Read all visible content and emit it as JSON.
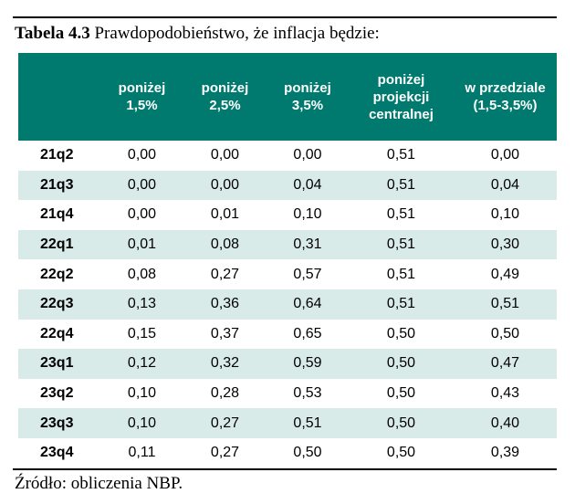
{
  "caption": {
    "label": "Tabela 4.3",
    "text": " Prawdopodobieństwo, że inflacja będzie:"
  },
  "table": {
    "header_color": "#007a6e",
    "alt_row_color": "#d9ebe9",
    "columns": [
      {
        "lines": [
          ""
        ]
      },
      {
        "lines": [
          "poniżej",
          "1,5%"
        ]
      },
      {
        "lines": [
          "poniżej",
          "2,5%"
        ]
      },
      {
        "lines": [
          "poniżej",
          "3,5%"
        ]
      },
      {
        "lines": [
          "poniżej",
          "projekcji",
          "centralnej"
        ]
      },
      {
        "lines": [
          "w przedziale",
          "(1,5-3,5%)"
        ]
      }
    ],
    "rows": [
      {
        "label": "21q2",
        "values": [
          "0,00",
          "0,00",
          "0,00",
          "0,51",
          "0,00"
        ]
      },
      {
        "label": "21q3",
        "values": [
          "0,00",
          "0,00",
          "0,04",
          "0,51",
          "0,04"
        ]
      },
      {
        "label": "21q4",
        "values": [
          "0,00",
          "0,01",
          "0,10",
          "0,51",
          "0,10"
        ]
      },
      {
        "label": "22q1",
        "values": [
          "0,01",
          "0,08",
          "0,31",
          "0,51",
          "0,30"
        ]
      },
      {
        "label": "22q2",
        "values": [
          "0,08",
          "0,27",
          "0,57",
          "0,51",
          "0,49"
        ]
      },
      {
        "label": "22q3",
        "values": [
          "0,13",
          "0,36",
          "0,64",
          "0,51",
          "0,51"
        ]
      },
      {
        "label": "22q4",
        "values": [
          "0,15",
          "0,37",
          "0,65",
          "0,50",
          "0,50"
        ]
      },
      {
        "label": "23q1",
        "values": [
          "0,12",
          "0,32",
          "0,59",
          "0,50",
          "0,47"
        ]
      },
      {
        "label": "23q2",
        "values": [
          "0,10",
          "0,28",
          "0,53",
          "0,50",
          "0,43"
        ]
      },
      {
        "label": "23q3",
        "values": [
          "0,10",
          "0,27",
          "0,51",
          "0,50",
          "0,40"
        ]
      },
      {
        "label": "23q4",
        "values": [
          "0,11",
          "0,27",
          "0,50",
          "0,50",
          "0,39"
        ]
      }
    ]
  },
  "source": {
    "text": "Źródło: obliczenia NBP."
  }
}
